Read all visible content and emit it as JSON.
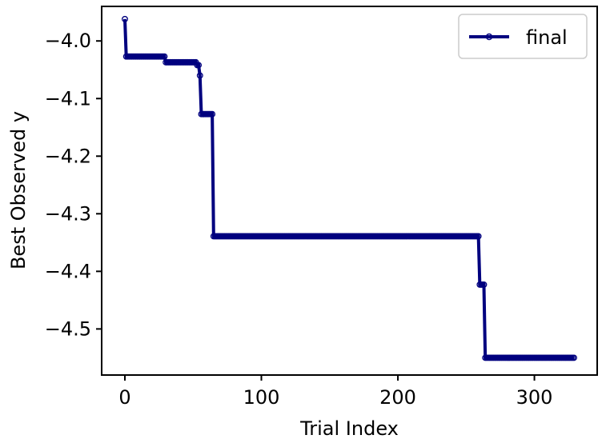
{
  "chart_data": {
    "type": "line",
    "title": "",
    "xlabel": "Trial Index",
    "ylabel": "Best Observed y",
    "xlim": [
      -17,
      346
    ],
    "ylim": [
      -4.58,
      -3.94
    ],
    "xticks": [
      0,
      100,
      200,
      300
    ],
    "xtick_labels": [
      "0",
      "100",
      "200",
      "300"
    ],
    "yticks": [
      -4.0,
      -4.1,
      -4.2,
      -4.3,
      -4.4,
      -4.5
    ],
    "ytick_labels": [
      "−4.0",
      "−4.1",
      "−4.2",
      "−4.3",
      "−4.4",
      "−4.5"
    ],
    "grid": false,
    "legend_position": "top-right",
    "n_points": 330,
    "steps": [
      {
        "x_from": 0,
        "x_to": 0,
        "y": -3.962
      },
      {
        "x_from": 1,
        "x_to": 29,
        "y": -4.027
      },
      {
        "x_from": 30,
        "x_to": 52,
        "y": -4.037
      },
      {
        "x_from": 53,
        "x_to": 54,
        "y": -4.042
      },
      {
        "x_from": 55,
        "x_to": 55,
        "y": -4.06
      },
      {
        "x_from": 56,
        "x_to": 64,
        "y": -4.127
      },
      {
        "x_from": 65,
        "x_to": 259,
        "y": -4.339
      },
      {
        "x_from": 260,
        "x_to": 263,
        "y": -4.423
      },
      {
        "x_from": 264,
        "x_to": 329,
        "y": -4.55
      }
    ],
    "series": [
      {
        "name": "final",
        "color": "#00007f",
        "marker": "circle-open",
        "line_style": "solid"
      }
    ]
  }
}
